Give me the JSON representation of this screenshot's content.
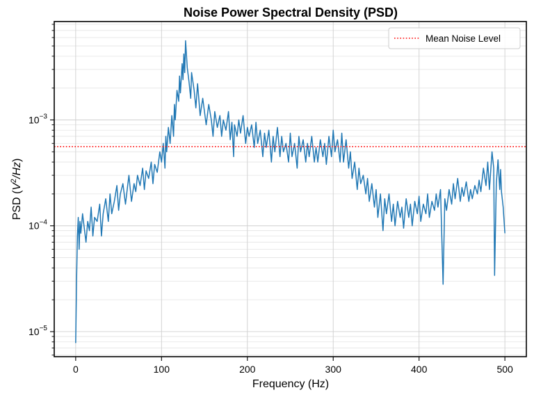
{
  "chart_data": {
    "type": "line",
    "title": "Noise Power Spectral Density (PSD)",
    "xlabel": "Frequency (Hz)",
    "ylabel": {
      "prefix": "PSD (",
      "var": "V",
      "sup": "2",
      "rest": "/Hz",
      "suffix": ")"
    },
    "xlim": [
      -25,
      525
    ],
    "ylim": [
      5.8e-06,
      0.0085
    ],
    "yscale": "log",
    "grid": true,
    "x_ticks": [
      0,
      100,
      200,
      300,
      400,
      500
    ],
    "x_tick_labels": [
      "0",
      "100",
      "200",
      "300",
      "400",
      "500"
    ],
    "y_ticks": [
      1e-05,
      0.0001,
      0.001
    ],
    "y_tick_labels": [
      {
        "base": "10",
        "exp": "−5"
      },
      {
        "base": "10",
        "exp": "−4"
      },
      {
        "base": "10",
        "exp": "−3"
      }
    ],
    "legend": {
      "position": "top-right",
      "entries": [
        "Mean Noise Level"
      ]
    },
    "series": [
      {
        "kind": "line",
        "color": "#1f77b4",
        "x": [
          0,
          1,
          2,
          3,
          4,
          5,
          6,
          8,
          10,
          12,
          14,
          16,
          18,
          20,
          22,
          25,
          28,
          30,
          32,
          35,
          38,
          40,
          42,
          45,
          48,
          50,
          52,
          55,
          58,
          60,
          62,
          65,
          68,
          70,
          72,
          75,
          78,
          80,
          82,
          85,
          88,
          90,
          92,
          95,
          98,
          100,
          102,
          104,
          105,
          106,
          108,
          110,
          112,
          114,
          115,
          116,
          118,
          120,
          121,
          122,
          124,
          125,
          126,
          127,
          128,
          130,
          132,
          134,
          135,
          138,
          140,
          142,
          145,
          148,
          150,
          152,
          155,
          158,
          160,
          162,
          165,
          168,
          170,
          172,
          175,
          178,
          180,
          182,
          184,
          185,
          188,
          190,
          192,
          195,
          198,
          200,
          202,
          205,
          208,
          210,
          212,
          215,
          218,
          220,
          222,
          225,
          228,
          230,
          232,
          235,
          238,
          240,
          242,
          245,
          248,
          250,
          252,
          255,
          258,
          260,
          262,
          265,
          268,
          270,
          272,
          275,
          278,
          280,
          282,
          285,
          288,
          290,
          292,
          295,
          298,
          300,
          302,
          305,
          308,
          310,
          312,
          315,
          318,
          320,
          322,
          325,
          328,
          330,
          332,
          335,
          338,
          340,
          342,
          345,
          348,
          350,
          352,
          355,
          358,
          360,
          362,
          365,
          368,
          370,
          372,
          375,
          378,
          380,
          382,
          385,
          388,
          390,
          392,
          395,
          398,
          400,
          402,
          405,
          408,
          410,
          412,
          415,
          418,
          420,
          422,
          425,
          428,
          430,
          432,
          435,
          438,
          440,
          442,
          445,
          448,
          450,
          452,
          455,
          458,
          460,
          462,
          465,
          468,
          470,
          472,
          475,
          478,
          480,
          482,
          485,
          487,
          488,
          490,
          492,
          494,
          495,
          496,
          498,
          500
        ],
        "y": [
          7.8e-06,
          3e-05,
          8e-05,
          0.00012,
          6e-05,
          0.00011,
          8.5e-05,
          0.00013,
          9.5e-05,
          7e-05,
          0.00011,
          9e-05,
          0.00015,
          8e-05,
          0.00012,
          0.00011,
          0.00016,
          8e-05,
          0.00013,
          0.00018,
          0.00011,
          0.0002,
          0.00013,
          0.00017,
          0.00024,
          0.00014,
          0.0002,
          0.00025,
          0.00016,
          0.00022,
          0.0003,
          0.00017,
          0.00025,
          0.00021,
          0.0003,
          0.00024,
          0.00035,
          0.00022,
          0.00033,
          0.00028,
          0.0004,
          0.00025,
          0.00038,
          0.00032,
          0.0005,
          0.0004,
          0.0006,
          0.00035,
          0.0007,
          0.0005,
          0.00085,
          0.0006,
          0.0011,
          0.0007,
          0.0014,
          0.001,
          0.0019,
          0.0015,
          0.0026,
          0.0018,
          0.0034,
          0.0024,
          0.0042,
          0.0028,
          0.0056,
          0.0031,
          0.0023,
          0.0016,
          0.0028,
          0.0019,
          0.0013,
          0.0022,
          0.0011,
          0.0016,
          0.0012,
          0.0009,
          0.0014,
          0.001,
          0.0007,
          0.0012,
          0.00085,
          0.0011,
          0.0007,
          0.001,
          0.0008,
          0.0012,
          0.00065,
          0.00095,
          0.00045,
          0.0009,
          0.0007,
          0.001,
          0.00075,
          0.0011,
          0.0006,
          0.00085,
          0.0007,
          0.0009,
          0.00055,
          0.00095,
          0.0006,
          0.0008,
          0.00045,
          0.00075,
          0.00055,
          0.0008,
          0.0004,
          0.0007,
          0.0005,
          0.00085,
          0.00045,
          0.0007,
          0.0005,
          0.0006,
          0.0004,
          0.00075,
          0.00045,
          0.0006,
          0.00035,
          0.0007,
          0.0005,
          0.00065,
          0.0004,
          0.0006,
          0.00045,
          0.0007,
          0.0004,
          0.00055,
          0.0004,
          0.00065,
          0.00045,
          0.0006,
          0.00038,
          0.0007,
          0.00045,
          0.0008,
          0.0005,
          0.00065,
          0.0004,
          0.00075,
          0.0004,
          0.00065,
          0.00035,
          0.0005,
          0.00028,
          0.0004,
          0.00022,
          0.00035,
          0.00025,
          0.0003,
          0.0002,
          0.00028,
          0.00017,
          0.00025,
          0.00015,
          0.00022,
          0.00012,
          0.0002,
          9e-05,
          0.00018,
          0.00013,
          0.0002,
          0.00011,
          0.00016,
          0.0001,
          0.00017,
          0.00012,
          0.00015,
          9.5e-05,
          0.00018,
          0.00012,
          0.00016,
          0.0001,
          0.00017,
          0.00013,
          0.00019,
          0.00011,
          0.00016,
          0.00013,
          0.0002,
          0.00012,
          0.00017,
          0.00014,
          0.0002,
          0.00015,
          0.00022,
          2.8e-05,
          0.00018,
          0.00014,
          0.00022,
          0.00016,
          0.00025,
          0.00018,
          0.00028,
          0.00017,
          0.00023,
          0.00019,
          0.00026,
          0.00017,
          0.00022,
          0.00018,
          0.00024,
          0.0002,
          0.00027,
          0.00021,
          0.00035,
          0.00024,
          0.0004,
          0.00022,
          0.0005,
          0.00035,
          3.4e-05,
          0.00025,
          0.00042,
          0.00022,
          0.00034,
          0.00021,
          0.00015,
          8.5e-05
        ],
        "label": ""
      },
      {
        "kind": "hline",
        "name": "Mean Noise Level",
        "color": "#ff0000",
        "style": "dotted",
        "y": 0.00056
      }
    ]
  }
}
